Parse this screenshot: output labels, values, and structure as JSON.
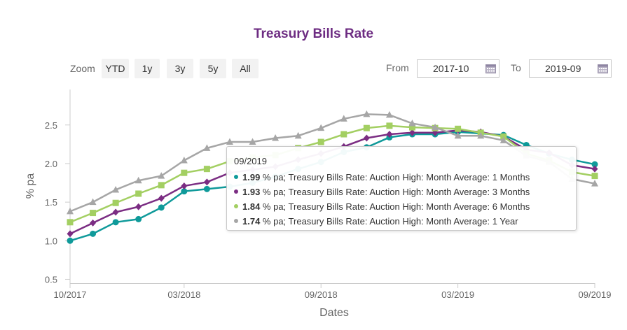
{
  "chart_data": {
    "type": "line",
    "title": "Treasury Bills Rate",
    "xlabel": "Dates",
    "ylabel": "% pa",
    "ylim": [
      0.45,
      2.96
    ],
    "yticks": [
      0.5,
      1.0,
      1.5,
      2.0,
      2.5
    ],
    "ytick_labels": [
      "0.5",
      "1.0",
      "1.5",
      "2.0",
      "2.5"
    ],
    "x": [
      "10/2017",
      "11/2017",
      "12/2017",
      "01/2018",
      "02/2018",
      "03/2018",
      "04/2018",
      "05/2018",
      "06/2018",
      "07/2018",
      "08/2018",
      "09/2018",
      "10/2018",
      "11/2018",
      "12/2018",
      "01/2019",
      "02/2019",
      "03/2019",
      "04/2019",
      "05/2019",
      "06/2019",
      "07/2019",
      "08/2019",
      "09/2019"
    ],
    "xtick_labels": [
      "10/2017",
      "03/2018",
      "09/2018",
      "03/2019",
      "09/2019"
    ],
    "xtick_indices": [
      0,
      5,
      11,
      17,
      23
    ],
    "grid": false,
    "legend": "none",
    "series": [
      {
        "name": "Treasury Bills Rate: Auction High: Month Average: 1 Months",
        "color": "#0f9a9a",
        "marker": "circle",
        "values": [
          1.0,
          1.09,
          1.24,
          1.28,
          1.43,
          1.64,
          1.67,
          1.7,
          1.75,
          1.83,
          1.93,
          2.02,
          2.15,
          2.21,
          2.34,
          2.38,
          2.38,
          2.41,
          2.39,
          2.37,
          2.24,
          2.13,
          2.05,
          1.99
        ]
      },
      {
        "name": "Treasury Bills Rate: Auction High: Month Average: 3 Months",
        "color": "#7b2d83",
        "marker": "diamond",
        "values": [
          1.09,
          1.23,
          1.37,
          1.44,
          1.55,
          1.71,
          1.76,
          1.88,
          1.92,
          1.96,
          2.05,
          2.13,
          2.22,
          2.33,
          2.38,
          2.4,
          2.4,
          2.43,
          2.41,
          2.35,
          2.18,
          2.14,
          1.98,
          1.93
        ]
      },
      {
        "name": "Treasury Bills Rate: Auction High: Month Average: 6 Months",
        "color": "#a3cf62",
        "marker": "square",
        "values": [
          1.24,
          1.36,
          1.49,
          1.61,
          1.72,
          1.88,
          1.93,
          2.03,
          2.08,
          2.11,
          2.2,
          2.28,
          2.38,
          2.46,
          2.49,
          2.47,
          2.46,
          2.45,
          2.4,
          2.35,
          2.13,
          2.04,
          1.89,
          1.84
        ]
      },
      {
        "name": "Treasury Bills Rate: Auction High: Month Average: 1 Year",
        "color": "#a6a6a6",
        "marker": "triangle",
        "values": [
          1.38,
          1.5,
          1.66,
          1.78,
          1.84,
          2.04,
          2.2,
          2.28,
          2.28,
          2.33,
          2.36,
          2.46,
          2.58,
          2.64,
          2.63,
          2.52,
          2.47,
          2.36,
          2.36,
          2.3,
          2.1,
          2.02,
          1.8,
          1.74
        ]
      }
    ]
  },
  "zoom": {
    "label": "Zoom",
    "buttons": [
      "YTD",
      "1y",
      "3y",
      "5y",
      "All"
    ]
  },
  "range": {
    "from_label": "From",
    "from_value": "2017-10",
    "to_label": "To",
    "to_value": "2019-09"
  },
  "tooltip": {
    "header": "09/2019",
    "unit": " % pa; ",
    "rows": [
      {
        "value": "1.99",
        "series": "Treasury Bills Rate: Auction High: Month Average: 1 Months",
        "color": "#0f9a9a"
      },
      {
        "value": "1.93",
        "series": "Treasury Bills Rate: Auction High: Month Average: 3 Months",
        "color": "#7b2d83"
      },
      {
        "value": "1.84",
        "series": "Treasury Bills Rate: Auction High: Month Average: 6 Months",
        "color": "#a3cf62"
      },
      {
        "value": "1.74",
        "series": "Treasury Bills Rate: Auction High: Month Average: 1 Year",
        "color": "#a6a6a6"
      }
    ]
  }
}
